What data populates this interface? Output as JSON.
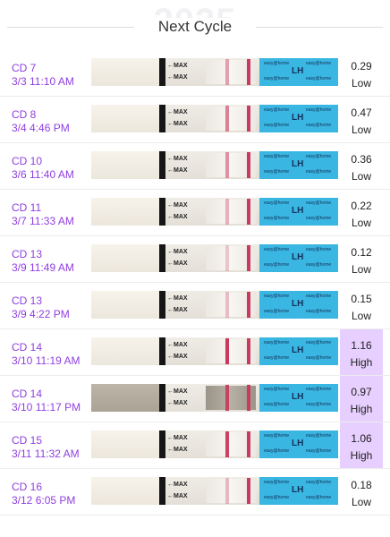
{
  "header": {
    "watermark": "2025",
    "title": "Next Cycle"
  },
  "strip_text": {
    "max": "←MAX",
    "lh": "LH",
    "brand": "easy@home"
  },
  "colors": {
    "accent": "#8f3fe0",
    "high_bg": "#e7cfff",
    "strip_label": "#39b6e1",
    "test_line": "#c93a5e"
  },
  "tests": [
    {
      "cd": "CD 7",
      "time": "3/3 11:10 AM",
      "value": "0.29",
      "level": "Low",
      "high": false,
      "dark": false,
      "line_strength": 0.35
    },
    {
      "cd": "CD 8",
      "time": "3/4 4:46 PM",
      "value": "0.47",
      "level": "Low",
      "high": false,
      "dark": false,
      "line_strength": 0.55
    },
    {
      "cd": "CD 10",
      "time": "3/6 11:40 AM",
      "value": "0.36",
      "level": "Low",
      "high": false,
      "dark": false,
      "line_strength": 0.45
    },
    {
      "cd": "CD 11",
      "time": "3/7 11:33 AM",
      "value": "0.22",
      "level": "Low",
      "high": false,
      "dark": false,
      "line_strength": 0.25
    },
    {
      "cd": "CD 13",
      "time": "3/9 11:49 AM",
      "value": "0.12",
      "level": "Low",
      "high": false,
      "dark": false,
      "line_strength": 0.12
    },
    {
      "cd": "CD 13",
      "time": "3/9 4:22 PM",
      "value": "0.15",
      "level": "Low",
      "high": false,
      "dark": false,
      "line_strength": 0.18
    },
    {
      "cd": "CD 14",
      "time": "3/10 11:19 AM",
      "value": "1.16",
      "level": "High",
      "high": true,
      "dark": false,
      "line_strength": 1.0
    },
    {
      "cd": "CD 14",
      "time": "3/10 11:17 PM",
      "value": "0.97",
      "level": "High",
      "high": true,
      "dark": true,
      "line_strength": 0.9
    },
    {
      "cd": "CD 15",
      "time": "3/11 11:32 AM",
      "value": "1.06",
      "level": "High",
      "high": true,
      "dark": false,
      "line_strength": 0.95
    },
    {
      "cd": "CD 16",
      "time": "3/12 6:05 PM",
      "value": "0.18",
      "level": "Low",
      "high": false,
      "dark": false,
      "line_strength": 0.2
    }
  ]
}
